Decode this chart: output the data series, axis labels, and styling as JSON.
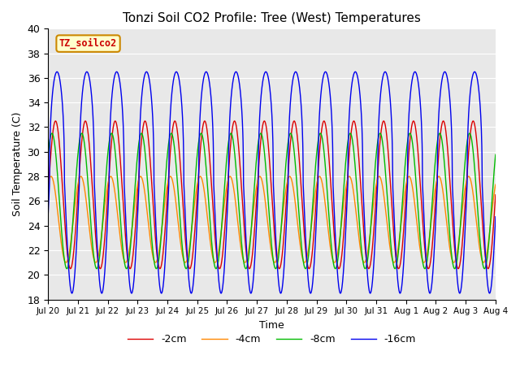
{
  "title": "Tonzi Soil CO2 Profile: Tree (West) Temperatures",
  "xlabel": "Time",
  "ylabel": "Soil Temperature (C)",
  "ylim": [
    18,
    40
  ],
  "annotation_text": "TZ_soilco2",
  "annotation_facecolor": "#ffffcc",
  "annotation_edgecolor": "#cc8800",
  "annotation_textcolor": "#cc0000",
  "bg_color": "#e8e8e8",
  "grid_color": "white",
  "x_start_day": 0,
  "x_end_day": 15,
  "x_tick_days": [
    0,
    1,
    2,
    3,
    4,
    5,
    6,
    7,
    8,
    9,
    10,
    11,
    12,
    13,
    14,
    15
  ],
  "x_tick_labels": [
    "Jul 20",
    "Jul 21",
    "Jul 22",
    "Jul 23",
    "Jul 24",
    "Jul 25",
    "Jul 26",
    "Jul 27",
    "Jul 28",
    "Jul 29",
    "Jul 30",
    "Jul 31",
    "Aug 1",
    "Aug 2",
    "Aug 3",
    "Aug 4"
  ],
  "n_points": 3000,
  "base_temp": 26.5,
  "lines": [
    {
      "label": "-2cm",
      "color": "#dd0000",
      "amplitude": 6.0,
      "phase": 0.0,
      "mean": 26.5,
      "sharpness": 1.0
    },
    {
      "label": "-4cm",
      "color": "#ff8800",
      "amplitude": 3.5,
      "phase": 0.15,
      "mean": 24.5,
      "sharpness": 1.0
    },
    {
      "label": "-8cm",
      "color": "#00bb00",
      "amplitude": 5.5,
      "phase": 0.12,
      "mean": 26.0,
      "sharpness": 1.0
    },
    {
      "label": "-16cm",
      "color": "#0000ee",
      "amplitude": 9.0,
      "phase": -0.05,
      "mean": 27.5,
      "sharpness": 2.5
    }
  ]
}
